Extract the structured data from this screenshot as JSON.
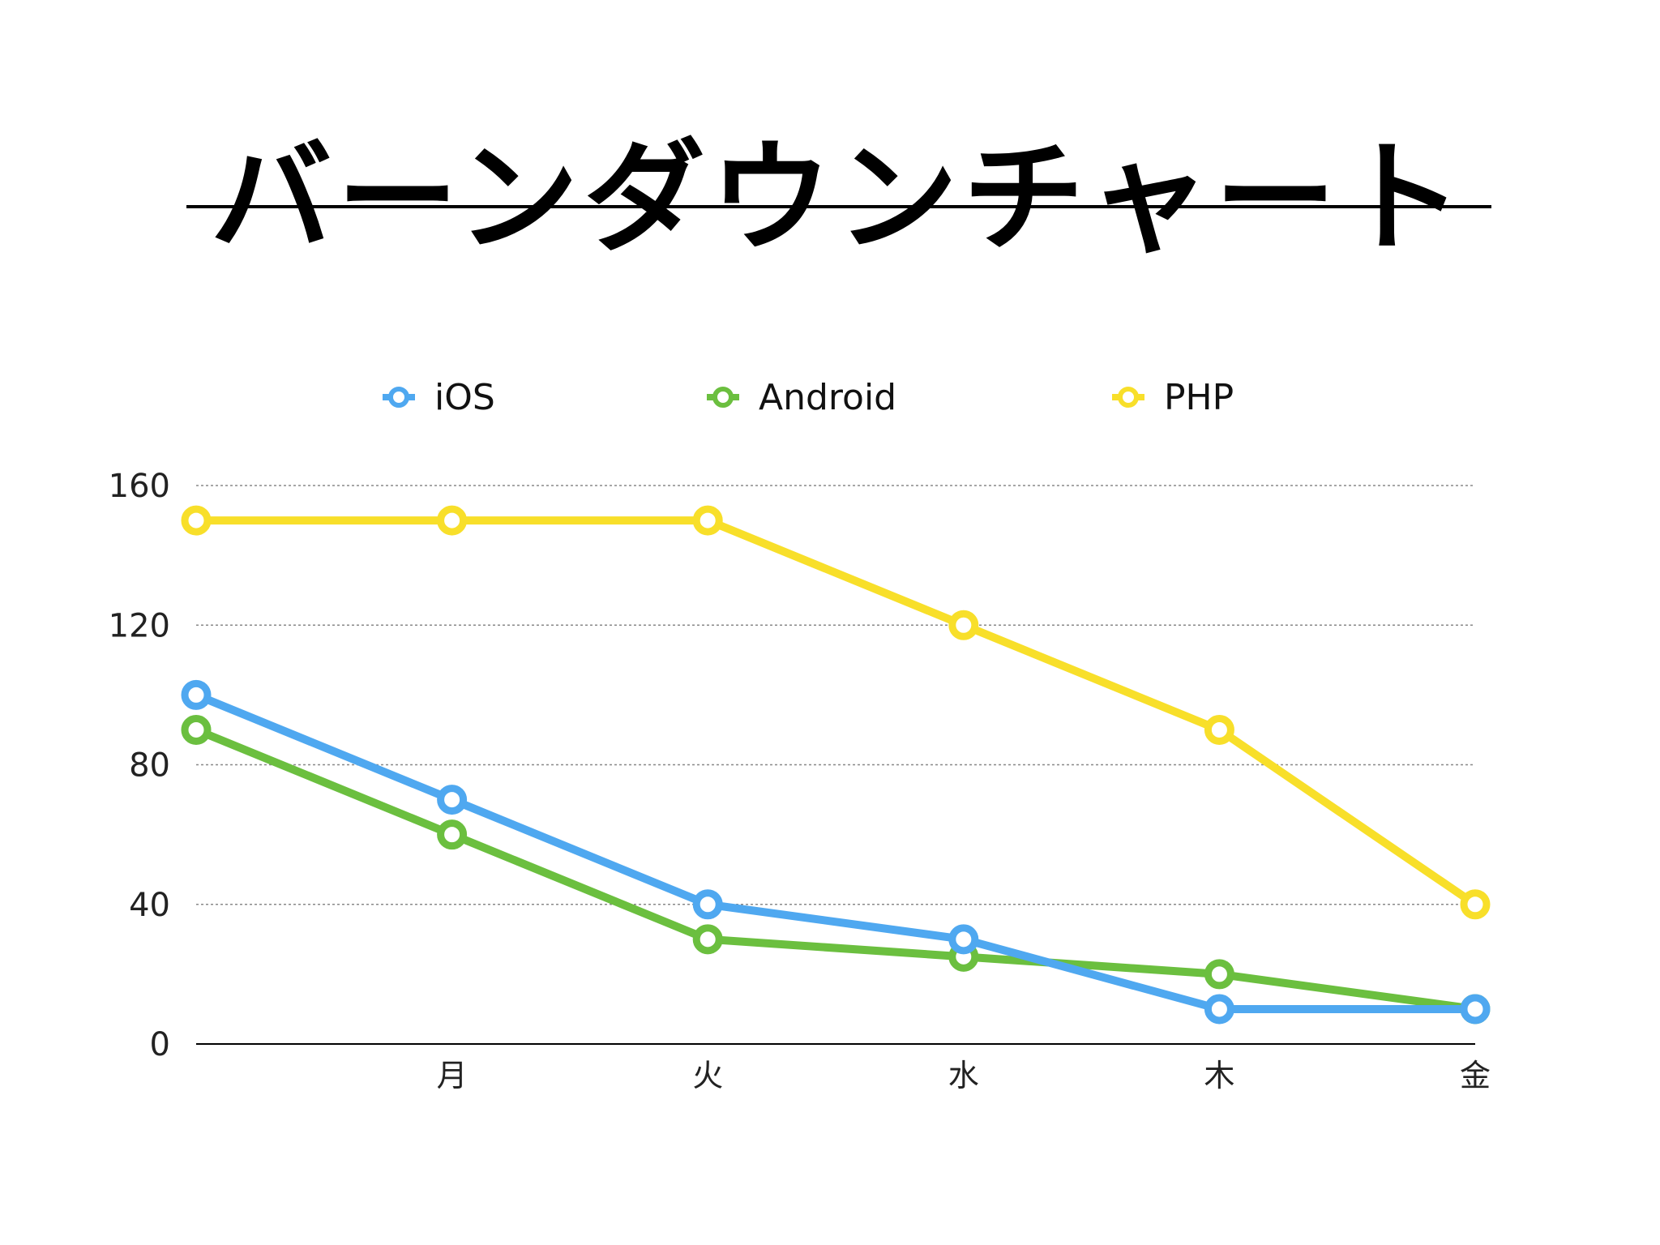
{
  "title": "バーンダウンチャート",
  "legend": {
    "items": [
      {
        "label": "iOS",
        "color": "#4fa8f0",
        "icon": "legend-marker-icon"
      },
      {
        "label": "Android",
        "color": "#6bbf3f",
        "icon": "legend-marker-icon"
      },
      {
        "label": "PHP",
        "color": "#f8df2a",
        "icon": "legend-marker-icon"
      }
    ]
  },
  "chart_data": {
    "type": "line",
    "title": "バーンダウンチャート",
    "xlabel": "",
    "ylabel": "",
    "categories": [
      "",
      "月",
      "火",
      "水",
      "木",
      "金"
    ],
    "ylim": [
      0,
      160
    ],
    "yticks": [
      0,
      40,
      80,
      120,
      160
    ],
    "grid": true,
    "legend_position": "top",
    "series": [
      {
        "name": "iOS",
        "color": "#4fa8f0",
        "values": [
          100,
          70,
          40,
          30,
          10,
          10
        ]
      },
      {
        "name": "Android",
        "color": "#6bbf3f",
        "values": [
          90,
          60,
          30,
          25,
          20,
          10
        ]
      },
      {
        "name": "PHP",
        "color": "#f8df2a",
        "values": [
          150,
          150,
          150,
          120,
          90,
          40
        ]
      }
    ]
  }
}
